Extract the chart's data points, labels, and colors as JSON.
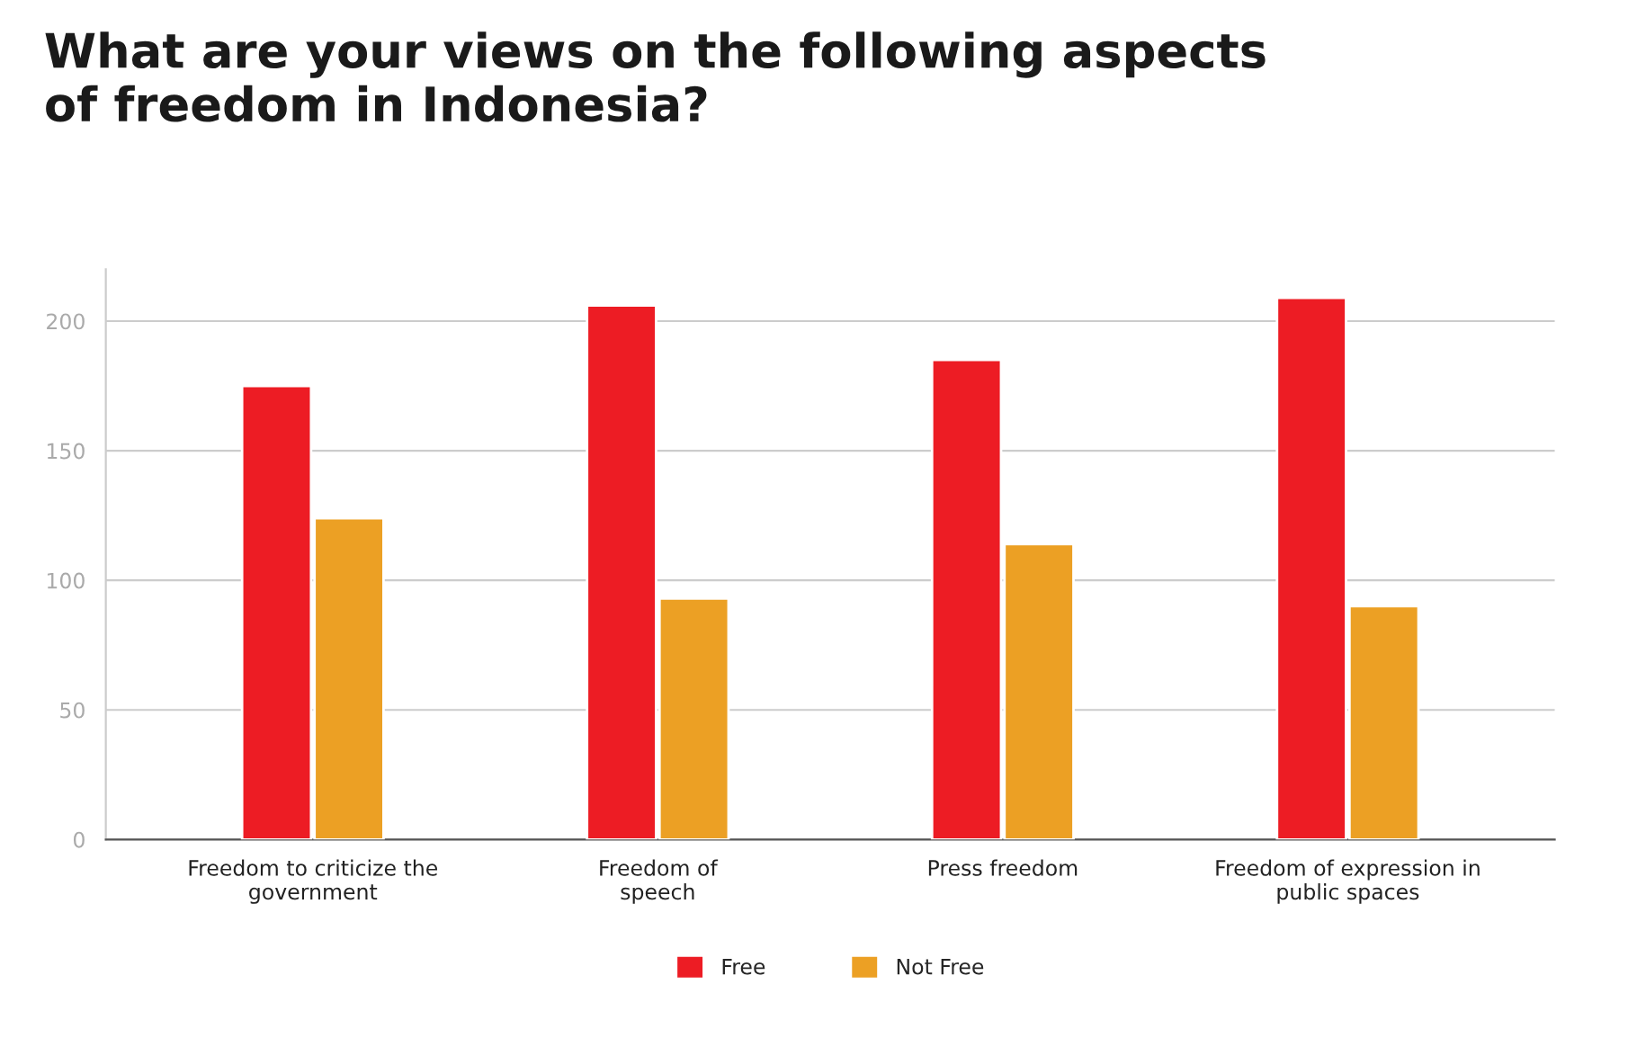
{
  "chart_data": {
    "type": "bar",
    "title": "What are your views on the following aspects\nof freedom in Indonesia?",
    "categories": [
      "Freedom to criticize the\ngovernment",
      "Freedom of\nspeech",
      "Press freedom",
      "Freedom of expression in\npublic spaces"
    ],
    "series": [
      {
        "name": "Free",
        "color": "#ed1c24",
        "values": [
          175,
          206,
          185,
          209
        ]
      },
      {
        "name": "Not Free",
        "color": "#eca024",
        "values": [
          124,
          93,
          114,
          90
        ]
      }
    ],
    "ylim": [
      0,
      220
    ],
    "yticks": [
      0,
      50,
      100,
      150,
      200
    ],
    "grid": "y",
    "legend": "bottom"
  }
}
